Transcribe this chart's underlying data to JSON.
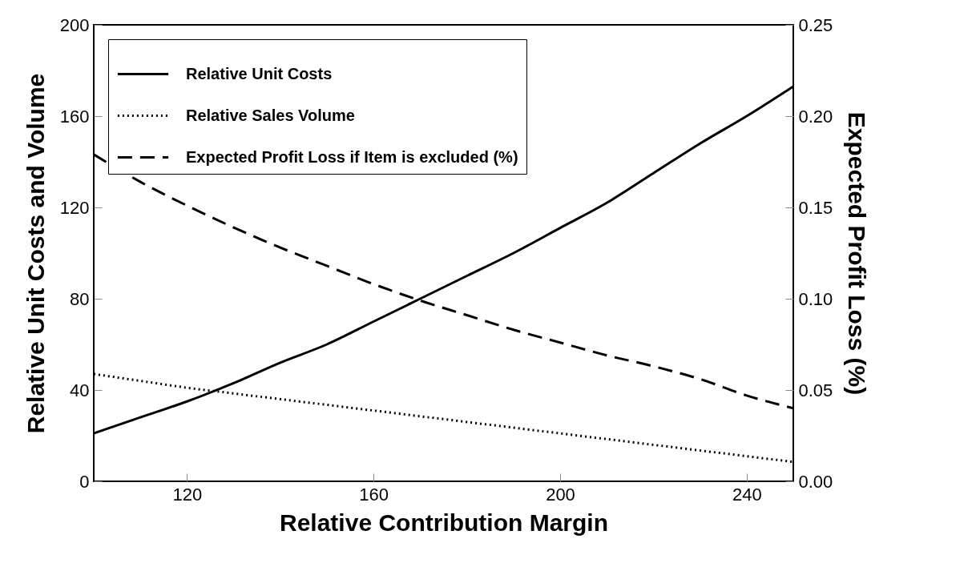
{
  "chart_data": {
    "type": "line",
    "xlabel": "Relative Contribution Margin",
    "ylabel": "Relative Unit Costs and Volume",
    "y2label": "Expected Profit Loss (%)",
    "x": [
      100,
      110,
      120,
      130,
      140,
      150,
      160,
      170,
      180,
      190,
      200,
      210,
      220,
      230,
      240,
      250
    ],
    "xlim": [
      100,
      250
    ],
    "xticks": [
      120,
      160,
      200,
      240
    ],
    "ylim": [
      0,
      200
    ],
    "yticks": [
      0,
      40,
      80,
      120,
      160,
      200
    ],
    "y2lim": [
      0,
      0.25
    ],
    "y2ticks": [
      {
        "value": 0,
        "label": "0.00"
      },
      {
        "value": 0.05,
        "label": "0.05"
      },
      {
        "value": 0.1,
        "label": "0.10"
      },
      {
        "value": 0.15,
        "label": "0.15"
      },
      {
        "value": 0.2,
        "label": "0.20"
      },
      {
        "value": 0.25,
        "label": "0.25"
      }
    ],
    "legend": "top left",
    "marker": "none",
    "series": [
      {
        "name": "Relative Unit Costs",
        "color": "#000000",
        "line_style": "solid",
        "values": [
          21,
          28,
          35,
          43,
          52,
          60,
          70,
          80,
          90,
          100,
          111,
          122,
          135,
          148,
          160,
          173
        ]
      },
      {
        "name": "Relative Sales Volume",
        "color": "#000000",
        "line_style": "dotted",
        "values": [
          47,
          44,
          41,
          38.5,
          36,
          33.5,
          31,
          28.5,
          26,
          23.5,
          21,
          18.5,
          16,
          13.5,
          11,
          8.5
        ]
      },
      {
        "name": "Expected Profit Loss if Item is excluded (%)",
        "color": "#000000",
        "line_style": "dashed",
        "axis": "y2",
        "values": [
          0.179,
          0.164,
          0.151,
          0.139,
          0.128,
          0.118,
          0.108,
          0.099,
          0.091,
          0.083,
          0.076,
          0.069,
          0.063,
          0.056,
          0.047,
          0.04
        ]
      }
    ]
  }
}
